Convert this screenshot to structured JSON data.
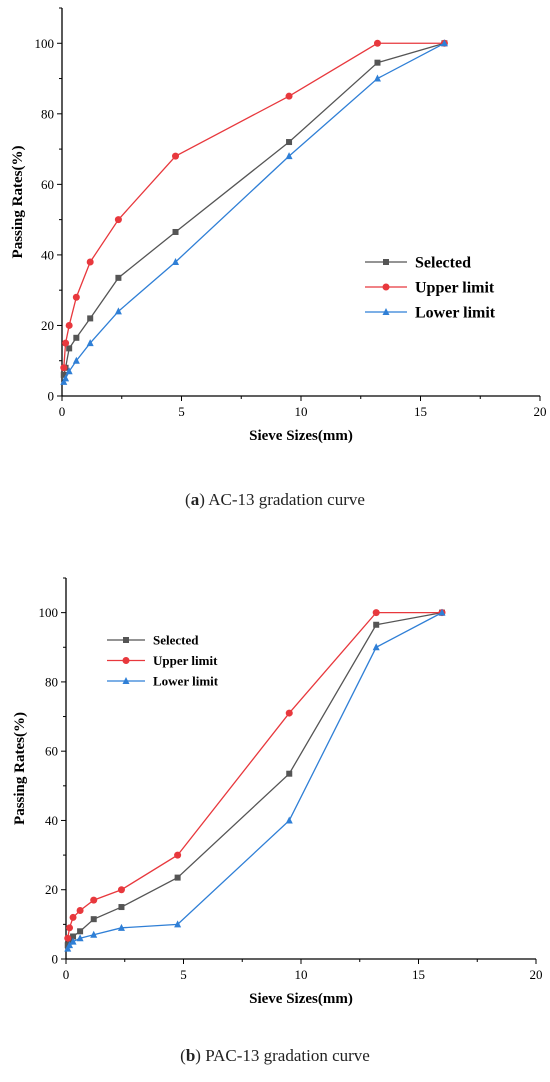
{
  "chart_data": [
    {
      "type": "line",
      "caption_letter": "a",
      "caption_text": " AC-13 gradation curve",
      "xlabel": "Sieve Sizes(mm)",
      "ylabel": "Passing Rates(%)",
      "xlim": [
        0,
        20
      ],
      "ylim": [
        0,
        110
      ],
      "xticks": [
        0,
        5,
        10,
        15,
        20
      ],
      "yticks": [
        0,
        20,
        40,
        60,
        80,
        100
      ],
      "legend_position": "right-middle",
      "series": [
        {
          "name": "Selected",
          "color": "#555555",
          "marker": "square",
          "x": [
            0.075,
            0.15,
            0.3,
            0.6,
            1.18,
            2.36,
            4.75,
            9.5,
            13.2,
            16
          ],
          "y": [
            6,
            8,
            13.5,
            16.5,
            22,
            33.5,
            46.5,
            72,
            94.5,
            100
          ]
        },
        {
          "name": "Upper limit",
          "color": "#e8383d",
          "marker": "circle",
          "x": [
            0.075,
            0.15,
            0.3,
            0.6,
            1.18,
            2.36,
            4.75,
            9.5,
            13.2,
            16
          ],
          "y": [
            8,
            15,
            20,
            28,
            38,
            50,
            68,
            85,
            100,
            100
          ]
        },
        {
          "name": "Lower limit",
          "color": "#2f7fd6",
          "marker": "triangle",
          "x": [
            0.075,
            0.15,
            0.3,
            0.6,
            1.18,
            2.36,
            4.75,
            9.5,
            13.2,
            16
          ],
          "y": [
            4,
            5,
            7,
            10,
            15,
            24,
            38,
            68,
            90,
            100
          ]
        }
      ]
    },
    {
      "type": "line",
      "caption_letter": "b",
      "caption_text": " PAC-13 gradation curve",
      "xlabel": "Sieve Sizes(mm)",
      "ylabel": "Passing Rates(%)",
      "xlim": [
        0,
        20
      ],
      "ylim": [
        0,
        110
      ],
      "xticks": [
        0,
        5,
        10,
        15,
        20
      ],
      "yticks": [
        0,
        20,
        40,
        60,
        80,
        100
      ],
      "legend_position": "top-left",
      "series": [
        {
          "name": "Selected",
          "color": "#555555",
          "marker": "square",
          "x": [
            0.075,
            0.15,
            0.3,
            0.6,
            1.18,
            2.36,
            4.75,
            9.5,
            13.2,
            16
          ],
          "y": [
            4,
            5,
            6.5,
            8,
            11.5,
            15,
            23.5,
            53.5,
            96.5,
            100
          ]
        },
        {
          "name": "Upper limit",
          "color": "#e8383d",
          "marker": "circle",
          "x": [
            0.075,
            0.15,
            0.3,
            0.6,
            1.18,
            2.36,
            4.75,
            9.5,
            13.2,
            16
          ],
          "y": [
            6,
            9,
            12,
            14,
            17,
            20,
            30,
            71,
            100,
            100
          ]
        },
        {
          "name": "Lower limit",
          "color": "#2f7fd6",
          "marker": "triangle",
          "x": [
            0.075,
            0.15,
            0.3,
            0.6,
            1.18,
            2.36,
            4.75,
            9.5,
            13.2,
            16
          ],
          "y": [
            3,
            4,
            5,
            6,
            7,
            9,
            10,
            40,
            90,
            100
          ]
        }
      ]
    }
  ]
}
